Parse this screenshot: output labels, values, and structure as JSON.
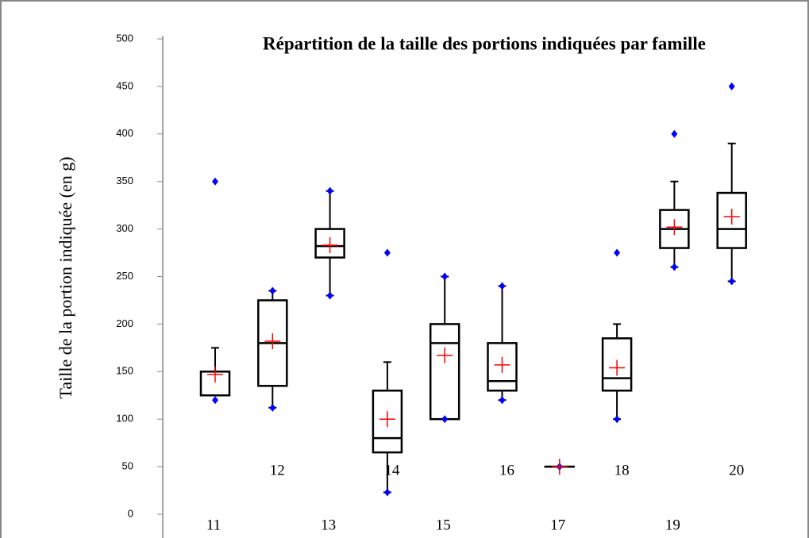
{
  "chart_data": {
    "type": "box",
    "title": "Répartition de la taille des portions indiquées par famille",
    "y_label": "Taille de la portion indiquée (en g)",
    "categories": [
      "11",
      "12",
      "13",
      "14",
      "15",
      "16",
      "17",
      "18",
      "19",
      "20"
    ],
    "boxes": [
      {
        "min": 125,
        "q1": 125,
        "median": 150,
        "q3": 150,
        "max": 175,
        "mean": 147,
        "points": [
          350,
          120
        ]
      },
      {
        "min": 112,
        "q1": 135,
        "median": 180,
        "q3": 225,
        "max": 235,
        "mean": 182,
        "points": [
          235,
          112
        ]
      },
      {
        "min": 230,
        "q1": 270,
        "median": 282,
        "q3": 300,
        "max": 340,
        "mean": 283,
        "points": [
          340,
          230
        ]
      },
      {
        "min": 23,
        "q1": 65,
        "median": 80,
        "q3": 130,
        "max": 160,
        "mean": 100,
        "points": [
          275,
          23
        ]
      },
      {
        "min": 100,
        "q1": 100,
        "median": 180,
        "q3": 200,
        "max": 250,
        "mean": 167,
        "points": [
          250,
          100
        ]
      },
      {
        "min": 120,
        "q1": 130,
        "median": 140,
        "q3": 180,
        "max": 240,
        "mean": 157,
        "points": [
          240,
          120
        ]
      },
      {
        "min": 50,
        "q1": 50,
        "median": 50,
        "q3": 50,
        "max": 50,
        "mean": 50,
        "points": [
          50
        ]
      },
      {
        "min": 100,
        "q1": 130,
        "median": 143,
        "q3": 185,
        "max": 200,
        "mean": 154,
        "points": [
          275,
          100
        ]
      },
      {
        "min": 260,
        "q1": 280,
        "median": 300,
        "q3": 320,
        "max": 350,
        "mean": 302,
        "points": [
          400,
          260
        ]
      },
      {
        "min": 245,
        "q1": 280,
        "median": 300,
        "q3": 338,
        "max": 390,
        "mean": 313,
        "points": [
          450,
          245
        ]
      }
    ],
    "box_color": "#000000",
    "mean_color": "#ff0000",
    "point_color": "#0000ff",
    "ylim": [
      0,
      500
    ],
    "yticks": [
      0,
      50,
      100,
      150,
      200,
      250,
      300,
      350,
      400,
      450,
      500
    ]
  }
}
